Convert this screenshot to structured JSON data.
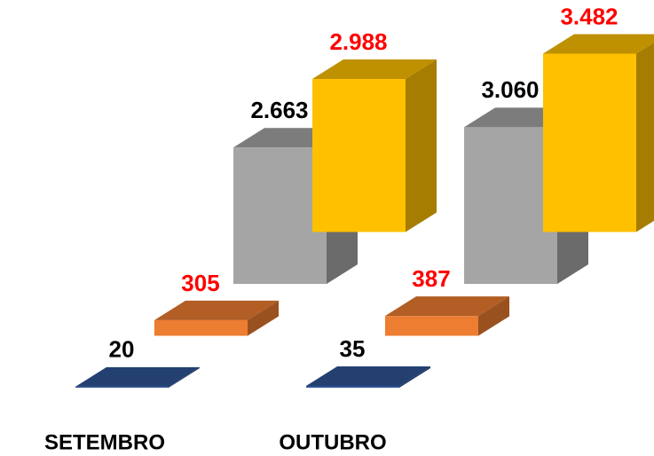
{
  "chart_data": {
    "type": "bar3d",
    "categories": [
      "SETEMBRO",
      "OUTUBRO"
    ],
    "series": [
      {
        "color": "#2f5597",
        "label_color": "#000000",
        "values": [
          20,
          35
        ],
        "value_labels": [
          "20",
          "35"
        ]
      },
      {
        "color": "#ed7d31",
        "label_color": "#ff0000",
        "values": [
          305,
          387
        ],
        "value_labels": [
          "305",
          "387"
        ]
      },
      {
        "color": "#a5a5a5",
        "label_color": "#000000",
        "values": [
          2663,
          3060
        ],
        "value_labels": [
          "2.663",
          "3.060"
        ]
      },
      {
        "color": "#ffc000",
        "label_color": "#ff0000",
        "values": [
          2988,
          3482
        ],
        "value_labels": [
          "2.988",
          "3.482"
        ]
      }
    ]
  }
}
